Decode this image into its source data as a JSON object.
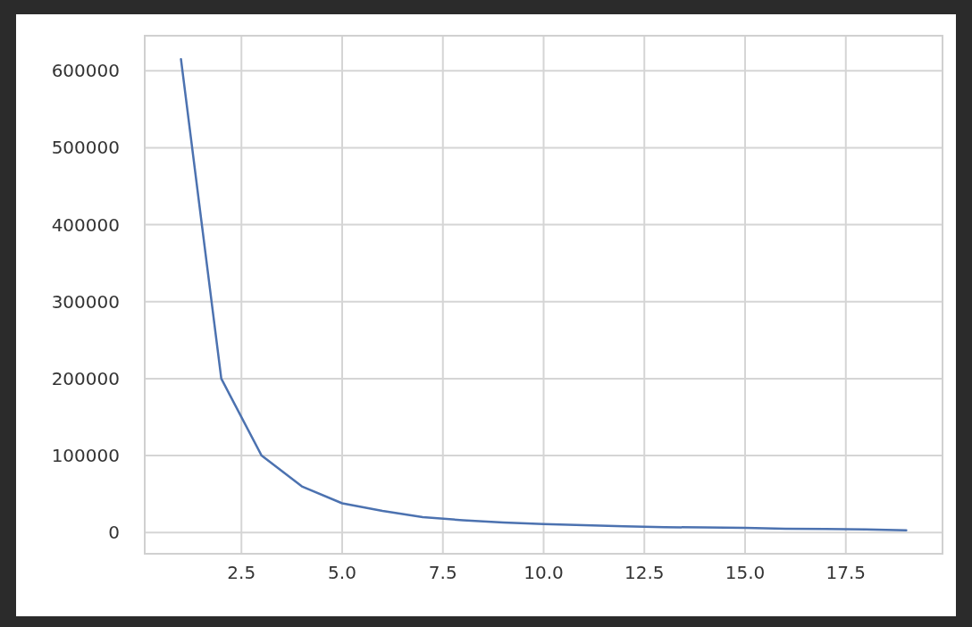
{
  "chart_data": {
    "type": "line",
    "x": [
      1,
      2,
      3,
      4,
      5,
      6,
      7,
      8,
      9,
      10,
      11,
      12,
      13,
      14,
      15,
      16,
      17,
      18,
      19
    ],
    "series": [
      {
        "color": "#4c72b0",
        "values": [
          615000,
          200000,
          100000,
          60000,
          38000,
          28000,
          20000,
          16000,
          13000,
          11000,
          9500,
          8000,
          7000,
          6500,
          6000,
          5000,
          4500,
          4000,
          3000
        ]
      }
    ],
    "xlim": [
      0.1,
      19.9
    ],
    "xticks": [
      {
        "value": 2.5,
        "label": "2.5"
      },
      {
        "value": 5,
        "label": "5.0"
      },
      {
        "value": 7.5,
        "label": "7.5"
      },
      {
        "value": 10,
        "label": "10.0"
      },
      {
        "value": 12.5,
        "label": "12.5"
      },
      {
        "value": 15,
        "label": "15.0"
      },
      {
        "value": 17.5,
        "label": "17.5"
      }
    ],
    "ylim": [
      -27600,
      645600
    ],
    "yticks": [
      0,
      100000,
      200000,
      300000,
      400000,
      500000,
      600000
    ],
    "grid": true,
    "line_style": "solid"
  }
}
